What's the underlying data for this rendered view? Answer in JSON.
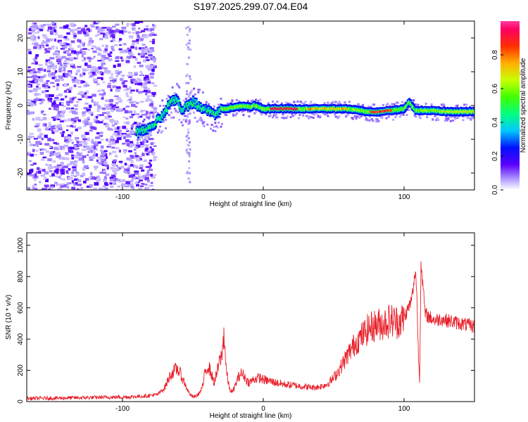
{
  "title": "S197.2025.299.07.04.E04",
  "chart_data": [
    {
      "type": "heatmap",
      "title": "S197.2025.299.07.04.E04",
      "xlabel": "Height of straight line (km)",
      "ylabel": "Frequency (Hz)",
      "xlim": [
        -168,
        150
      ],
      "ylim": [
        -25,
        25
      ],
      "xticks": [
        "-100",
        "0",
        "100"
      ],
      "yticks": [
        "20",
        "10",
        "0",
        "-10",
        "-20"
      ],
      "xtick_values": [
        -100,
        0,
        100
      ],
      "ytick_values": [
        20,
        10,
        0,
        -10,
        -20
      ],
      "colorbar": {
        "label": "Normalized spectral amplitude",
        "range": [
          0,
          1
        ],
        "ticks": [
          "0.0",
          "0.2",
          "0.4",
          "0.6",
          "0.8"
        ],
        "tick_values": [
          0.0,
          0.2,
          0.4,
          0.6,
          0.8
        ]
      },
      "ridge": {
        "x": [
          -88,
          -82,
          -78,
          -74,
          -70,
          -66,
          -62,
          -58,
          -54,
          -50,
          -46,
          -42,
          -38,
          -34,
          -30,
          -26,
          -22,
          -18,
          -14,
          -10,
          -6,
          -2,
          0,
          10,
          20,
          30,
          40,
          50,
          60,
          70,
          80,
          90,
          100,
          104,
          108,
          112,
          120,
          130,
          140,
          150
        ],
        "y": [
          -8,
          -7,
          -6,
          -4,
          -2,
          1,
          2,
          -1,
          0,
          1,
          0,
          -1,
          -2,
          -3,
          -1,
          -1,
          -0.5,
          -0.5,
          0,
          -0.5,
          0,
          -0.5,
          -1,
          -1,
          -1,
          -1,
          -1,
          -1,
          -1,
          -1.5,
          -2,
          -1.5,
          -1,
          1,
          -1.5,
          -1.5,
          -1.5,
          -1.8,
          -1.8,
          -1.8
        ]
      }
    },
    {
      "type": "line",
      "xlabel": "Height of straight line (km)",
      "ylabel": "SNR (10 * v/v)",
      "xlim": [
        -168,
        150
      ],
      "ylim": [
        0,
        1080
      ],
      "xticks": [
        "-100",
        "0",
        "100"
      ],
      "yticks": [
        "0",
        "200",
        "400",
        "600",
        "800",
        "1000"
      ],
      "xtick_values": [
        -100,
        0,
        100
      ],
      "ytick_values": [
        0,
        200,
        400,
        600,
        800,
        1000
      ],
      "series": [
        {
          "name": "SNR",
          "color": "#e8202a",
          "x": [
            -168,
            -150,
            -130,
            -110,
            -95,
            -85,
            -75,
            -70,
            -66,
            -63,
            -61,
            -59,
            -57,
            -55,
            -53,
            -51,
            -49,
            -47,
            -45,
            -43,
            -41,
            -39,
            -37,
            -35,
            -33,
            -31,
            -30,
            -29,
            -28,
            -27,
            -26,
            -24,
            -22,
            -20,
            -18,
            -16,
            -14,
            -12,
            -10,
            -8,
            -6,
            -4,
            -2,
            0,
            5,
            10,
            15,
            20,
            25,
            30,
            35,
            40,
            45,
            50,
            55,
            60,
            65,
            70,
            75,
            80,
            85,
            90,
            95,
            100,
            103,
            105,
            107,
            108,
            109,
            110,
            111,
            112,
            113,
            115,
            118,
            122,
            126,
            130,
            135,
            140,
            145,
            150
          ],
          "y": [
            20,
            22,
            25,
            28,
            30,
            35,
            45,
            90,
            170,
            200,
            210,
            180,
            140,
            100,
            60,
            35,
            30,
            40,
            60,
            100,
            200,
            230,
            180,
            120,
            180,
            260,
            280,
            320,
            450,
            300,
            180,
            80,
            60,
            100,
            150,
            180,
            170,
            140,
            120,
            135,
            145,
            150,
            150,
            140,
            130,
            120,
            110,
            105,
            100,
            95,
            90,
            95,
            110,
            150,
            220,
            300,
            370,
            420,
            470,
            490,
            500,
            520,
            510,
            530,
            600,
            640,
            750,
            850,
            700,
            350,
            120,
            900,
            780,
            560,
            540,
            520,
            530,
            520,
            510,
            500,
            490,
            480
          ]
        }
      ]
    }
  ]
}
